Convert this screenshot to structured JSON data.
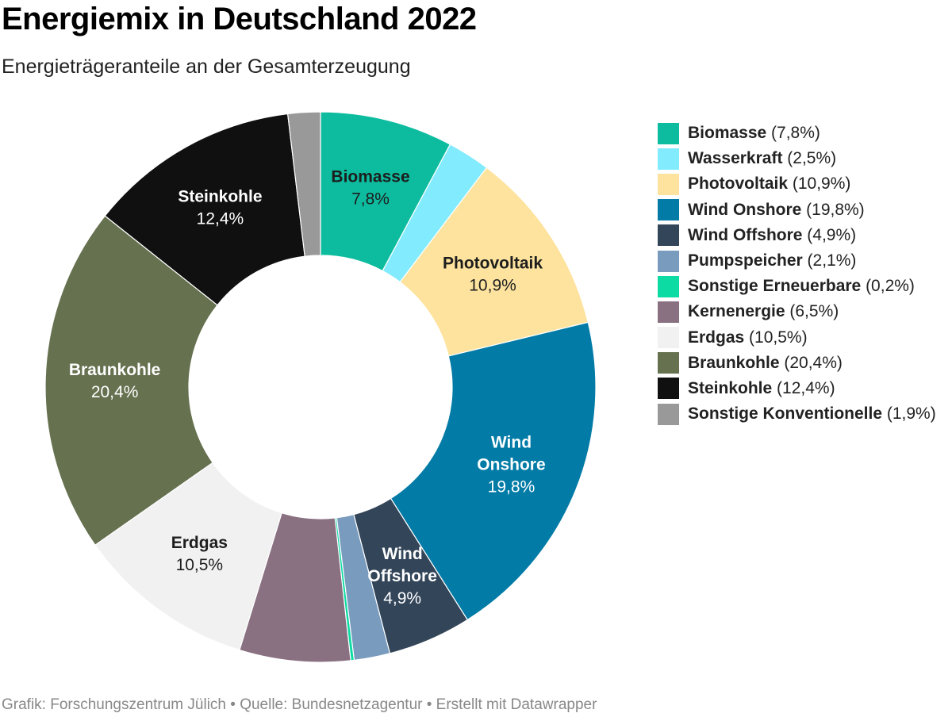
{
  "title": "Energiemix in Deutschland 2022",
  "subtitle": "Energieträgeranteile an der Gesamterzeugung",
  "footer": "Grafik: Forschungszentrum Jülich • Quelle: Bundesnetzagentur • Erstellt mit Datawrapper",
  "chart_data": {
    "type": "pie",
    "variant": "donut",
    "unit": "%",
    "categories": [
      "Biomasse",
      "Wasserkraft",
      "Photovoltaik",
      "Wind Onshore",
      "Wind Offshore",
      "Pumpspeicher",
      "Sonstige Erneuerbare",
      "Kernenergie",
      "Erdgas",
      "Braunkohle",
      "Steinkohle",
      "Sonstige Konventionelle"
    ],
    "values": [
      7.8,
      2.5,
      10.9,
      19.8,
      4.9,
      2.1,
      0.2,
      6.5,
      10.5,
      20.4,
      12.4,
      1.9
    ],
    "value_labels": [
      "7,8%",
      "2,5%",
      "10,9%",
      "19,8%",
      "4,9%",
      "2,1%",
      "0,2%",
      "6,5%",
      "10,5%",
      "20,4%",
      "12,4%",
      "1,9%"
    ],
    "colors": [
      "#0dbc9f",
      "#82ebfe",
      "#fde39e",
      "#027ba6",
      "#334559",
      "#789bbe",
      "#0ddba4",
      "#8a7182",
      "#f1f1f1",
      "#667150",
      "#101010",
      "#999999"
    ],
    "slice_labels": [
      {
        "lines": [
          "Biomasse"
        ],
        "value": "7,8%"
      },
      null,
      {
        "lines": [
          "Photovoltaik"
        ],
        "value": "10,9%"
      },
      {
        "lines": [
          "Wind",
          "Onshore"
        ],
        "value": "19,8%"
      },
      {
        "lines": [
          "Wind",
          "Offshore"
        ],
        "value": "4,9%"
      },
      null,
      null,
      null,
      {
        "lines": [
          "Erdgas"
        ],
        "value": "10,5%"
      },
      {
        "lines": [
          "Braunkohle"
        ],
        "value": "20,4%"
      },
      {
        "lines": [
          "Steinkohle"
        ],
        "value": "12,4%"
      },
      null
    ],
    "light_text_slices": [
      3,
      4,
      9,
      10
    ],
    "start_angle_deg": 0,
    "direction": "clockwise",
    "legend_position": "right"
  }
}
